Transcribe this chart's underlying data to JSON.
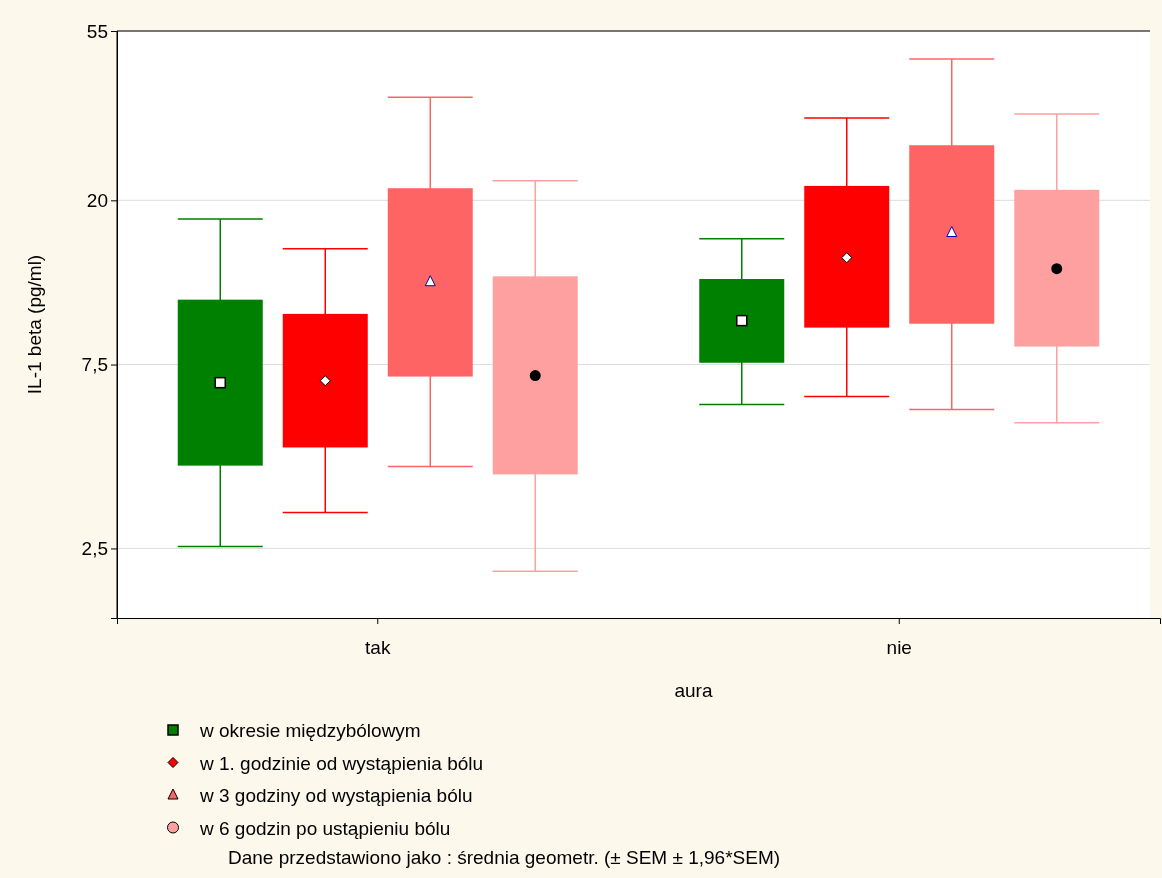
{
  "chart_data": {
    "type": "box",
    "xlabel": "aura",
    "ylabel": "IL-1 beta (pg/ml)",
    "categories": [
      "tak",
      "nie"
    ],
    "log": true,
    "ylim": [
      1.65,
      55
    ],
    "yticks": [
      {
        "value": 2.5,
        "label": "2,5"
      },
      {
        "value": 7.5,
        "label": "7,5"
      },
      20,
      55
    ],
    "grid": "y",
    "legend": "bottom",
    "series": [
      {
        "name": "w okresie międzybólowym",
        "color": "#008000",
        "marker": "square",
        "boxes": [
          {
            "low": 2.53,
            "q1": 4.1,
            "median": 6.73,
            "q3": 11.05,
            "high": 17.9
          },
          {
            "low": 5.91,
            "q1": 7.58,
            "median": 9.75,
            "q3": 12.5,
            "high": 15.9
          }
        ]
      },
      {
        "name": "w 1. godzinie od wystąpienia bólu",
        "color": "#ff0000",
        "marker": "diamond",
        "boxes": [
          {
            "low": 3.1,
            "q1": 4.57,
            "median": 6.81,
            "q3": 10.15,
            "high": 14.97
          },
          {
            "low": 6.2,
            "q1": 9.35,
            "median": 14.2,
            "q3": 21.8,
            "high": 32.7
          }
        ]
      },
      {
        "name": "w 3 godziny od wystąpienia bólu",
        "color": "#ff6464",
        "marker": "triangle",
        "boxes": [
          {
            "low": 4.08,
            "q1": 6.98,
            "median": 12.3,
            "q3": 21.5,
            "high": 37.0
          },
          {
            "low": 5.73,
            "q1": 9.57,
            "median": 16.5,
            "q3": 27.8,
            "high": 46.5
          }
        ]
      },
      {
        "name": "w 6 godzin po ustąpieniu bólu",
        "color": "#ffa0a0",
        "marker": "circle",
        "boxes": [
          {
            "low": 2.18,
            "q1": 3.89,
            "median": 7.02,
            "q3": 12.7,
            "high": 22.5
          },
          {
            "low": 5.3,
            "q1": 8.35,
            "median": 13.3,
            "q3": 21.3,
            "high": 33.5
          }
        ]
      }
    ],
    "annotations": [
      "Dane przedstawiono jako : średnia geometr. (± SEM ± 1,96*SEM)"
    ]
  }
}
